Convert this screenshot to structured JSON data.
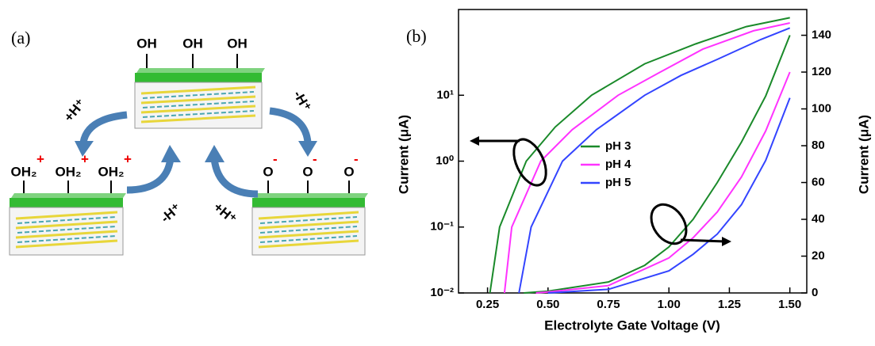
{
  "diagram": {
    "panel_label": "(a)",
    "top": {
      "groups": [
        "OH",
        "OH",
        "OH"
      ]
    },
    "left": {
      "groups": [
        "OH₂",
        "OH₂",
        "OH₂"
      ],
      "charges": [
        "+",
        "+",
        "+"
      ]
    },
    "right": {
      "groups": [
        "O",
        "O",
        "O"
      ],
      "charges": [
        "-",
        "-",
        "-"
      ]
    },
    "arrows": [
      "+H⁺",
      "-H⁺",
      "-H⁺",
      "+H⁺"
    ]
  },
  "chart_data": {
    "type": "line",
    "panel_label": "(b)",
    "xlabel": "Electrolyte Gate Voltage (V)",
    "ylabel": "Current (μA)",
    "y2label": "Current (μA)",
    "xlim": [
      0.13,
      1.57
    ],
    "xticks": [
      0.25,
      {
        "value": 0.5,
        "label": "0.50"
      },
      0.75,
      {
        "value": 1,
        "label": "1.00"
      },
      1.25,
      {
        "value": 1.5,
        "label": "1.50"
      }
    ],
    "ylim": [
      0.01,
      200
    ],
    "ylog": true,
    "yticks": [
      {
        "value": 0.01,
        "label": "10⁻²"
      },
      {
        "value": 0.1,
        "label": "10⁻¹"
      },
      {
        "value": 1,
        "label": "10⁰"
      },
      {
        "value": 10,
        "label": "10¹"
      }
    ],
    "y2lim": [
      0,
      154
    ],
    "y2ticks": [
      0,
      20,
      40,
      60,
      80,
      100,
      120,
      140
    ],
    "series": [
      {
        "name": "pH 3",
        "color": "#1a8a2a",
        "x": [
          0.26,
          0.3,
          0.41,
          0.53,
          0.68,
          0.9,
          1.11,
          1.32,
          1.5
        ],
        "values": [
          0.01,
          0.1,
          1,
          3.3,
          10,
          30,
          60,
          110,
          150
        ]
      },
      {
        "name": "pH 4",
        "color": "#ff33ff",
        "x": [
          0.32,
          0.35,
          0.47,
          0.6,
          0.79,
          0.96,
          1.14,
          1.35,
          1.5
        ],
        "values": [
          0.01,
          0.1,
          1,
          3,
          10,
          22,
          50,
          95,
          125
        ]
      },
      {
        "name": "pH 5",
        "color": "#3344ff",
        "x": [
          0.38,
          0.43,
          0.56,
          0.7,
          0.9,
          1.05,
          1.2,
          1.38,
          1.5
        ],
        "values": [
          0.01,
          0.1,
          1,
          3,
          10,
          20,
          35,
          70,
          105
        ]
      },
      {
        "name": "pH 3",
        "color": "#1a8a2a",
        "axis": "y2",
        "x": [
          0.4,
          0.5,
          0.75,
          0.9,
          1,
          1.1,
          1.2,
          1.3,
          1.4,
          1.5
        ],
        "values": [
          0,
          1,
          6,
          15,
          25,
          40,
          60,
          82,
          107,
          140
        ]
      },
      {
        "name": "pH 4",
        "color": "#ff33ff",
        "axis": "y2",
        "x": [
          0.45,
          0.5,
          0.75,
          1,
          1.1,
          1.2,
          1.3,
          1.4,
          1.5
        ],
        "values": [
          0,
          0.5,
          4,
          19,
          30,
          44,
          63,
          88,
          120
        ]
      },
      {
        "name": "pH 5",
        "color": "#3344ff",
        "axis": "y2",
        "x": [
          0.5,
          0.75,
          1,
          1.1,
          1.2,
          1.3,
          1.4,
          1.5
        ],
        "values": [
          0,
          2,
          12,
          21,
          32,
          48,
          72,
          106
        ]
      }
    ]
  }
}
